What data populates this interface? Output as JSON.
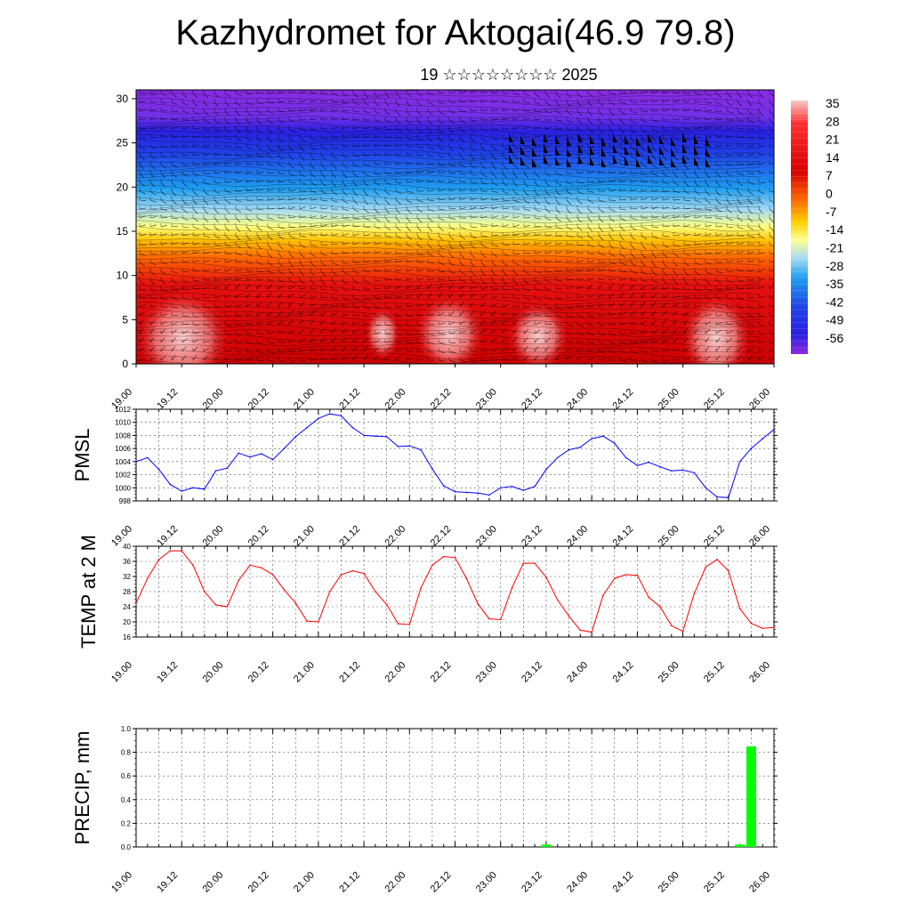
{
  "header": {
    "title": "Kazhydromet for Aktogai(46.9 79.8)",
    "subtitle": "19 ☆☆☆☆☆☆☆☆ 2025"
  },
  "time_labels": [
    "19.00",
    "19.12",
    "20.00",
    "20.12",
    "21.00",
    "21.12",
    "22.00",
    "22.12",
    "23.00",
    "23.12",
    "24.00",
    "24.12",
    "25.00",
    "25.12",
    "26.00"
  ],
  "chart_data": [
    {
      "type": "heatmap",
      "y_ticks": [
        0,
        5,
        10,
        15,
        20,
        25,
        30
      ],
      "ylim": [
        0,
        31
      ],
      "colorbar_labels": [
        "35",
        "28",
        "21",
        "14",
        "7",
        "0",
        "-7",
        "-14",
        "-21",
        "-28",
        "-35",
        "-42",
        "-49",
        "-56"
      ],
      "colors": {
        "warm_max": "#f4c8c8",
        "warm_mid": "#e60000",
        "neutral": "#ffff80",
        "cool_mid": "#1e9ef0",
        "cold": "#2f2fe8",
        "cold_max": "#8a2be2"
      }
    },
    {
      "type": "line",
      "ylabel": "PMSL",
      "ylim": [
        998,
        1012
      ],
      "y_ticks": [
        998,
        1000,
        1002,
        1004,
        1006,
        1008,
        1010,
        1012
      ],
      "color": "#0000ff",
      "x": [
        "19.00",
        "19.03",
        "19.06",
        "19.09",
        "19.12",
        "19.15",
        "19.18",
        "19.21",
        "20.00",
        "20.03",
        "20.06",
        "20.09",
        "20.12",
        "20.15",
        "20.18",
        "20.21",
        "21.00",
        "21.03",
        "21.06",
        "21.09",
        "21.12",
        "21.15",
        "21.18",
        "21.21",
        "22.00",
        "22.03",
        "22.06",
        "22.09",
        "22.12",
        "22.15",
        "22.18",
        "22.21",
        "23.00",
        "23.03",
        "23.06",
        "23.09",
        "23.12",
        "23.15",
        "23.18",
        "23.21",
        "24.00",
        "24.03",
        "24.06",
        "24.09",
        "24.12",
        "24.15",
        "24.18",
        "24.21",
        "25.00",
        "25.03",
        "25.06",
        "25.09",
        "25.12",
        "25.15",
        "25.18",
        "25.21",
        "26.00"
      ],
      "values": [
        1004.0,
        1004.6,
        1002.8,
        1000.5,
        999.5,
        1000.0,
        999.8,
        1002.6,
        1003.0,
        1005.3,
        1004.7,
        1005.2,
        1004.3,
        1006.0,
        1007.8,
        1009.2,
        1010.6,
        1011.3,
        1011.0,
        1009.2,
        1008.0,
        1007.9,
        1007.8,
        1006.3,
        1006.4,
        1005.8,
        1002.9,
        1000.3,
        999.4,
        999.3,
        999.2,
        998.9,
        1000.0,
        1000.2,
        999.6,
        1000.2,
        1002.8,
        1004.6,
        1005.8,
        1006.2,
        1007.5,
        1007.9,
        1006.8,
        1004.6,
        1003.4,
        1003.9,
        1003.2,
        1002.6,
        1002.7,
        1002.3,
        1000.0,
        998.6,
        998.5,
        1004.0,
        1006.0,
        1007.5,
        1008.9
      ]
    },
    {
      "type": "line",
      "ylabel": "TEMP at 2 M",
      "ylim": [
        16,
        40
      ],
      "y_ticks": [
        16,
        20,
        24,
        28,
        32,
        36,
        40
      ],
      "color": "#ff0000",
      "x": [
        "19.00",
        "19.03",
        "19.06",
        "19.09",
        "19.12",
        "19.15",
        "19.18",
        "19.21",
        "20.00",
        "20.03",
        "20.06",
        "20.09",
        "20.12",
        "20.15",
        "20.18",
        "20.21",
        "21.00",
        "21.03",
        "21.06",
        "21.09",
        "21.12",
        "21.15",
        "21.18",
        "21.21",
        "22.00",
        "22.03",
        "22.06",
        "22.09",
        "22.12",
        "22.15",
        "22.18",
        "22.21",
        "23.00",
        "23.03",
        "23.06",
        "23.09",
        "23.12",
        "23.15",
        "23.18",
        "23.21",
        "24.00",
        "24.03",
        "24.06",
        "24.09",
        "24.12",
        "24.15",
        "24.18",
        "24.21",
        "25.00",
        "25.03",
        "25.06",
        "25.09",
        "25.12",
        "25.15",
        "25.18",
        "25.21",
        "26.00"
      ],
      "values": [
        25.0,
        31.5,
        36.5,
        38.8,
        38.8,
        35.0,
        28.0,
        24.5,
        24.0,
        31.0,
        35.0,
        34.3,
        32.5,
        28.5,
        25.0,
        20.2,
        20.0,
        28.0,
        32.5,
        33.5,
        32.8,
        28.0,
        24.6,
        19.5,
        19.3,
        29.0,
        35.0,
        37.3,
        37.0,
        31.5,
        24.8,
        20.8,
        20.6,
        29.0,
        35.5,
        35.5,
        31.8,
        25.8,
        21.5,
        17.8,
        17.3,
        27.0,
        31.5,
        32.5,
        32.3,
        26.5,
        24.0,
        19.0,
        17.5,
        27.5,
        34.5,
        36.5,
        33.5,
        23.5,
        19.6,
        18.3,
        18.5
      ]
    },
    {
      "type": "bar",
      "ylabel": "PRECIP, mm",
      "ylim": [
        0,
        1.0
      ],
      "y_ticks": [
        "0.0",
        "0.2",
        "0.4",
        "0.6",
        "0.8",
        "1.0"
      ],
      "color": "#00ff00",
      "bars": [
        {
          "x": "23.12",
          "value": 0.02
        },
        {
          "x": "25.15",
          "value": 0.02
        },
        {
          "x": "25.18",
          "value": 0.85
        }
      ]
    }
  ]
}
